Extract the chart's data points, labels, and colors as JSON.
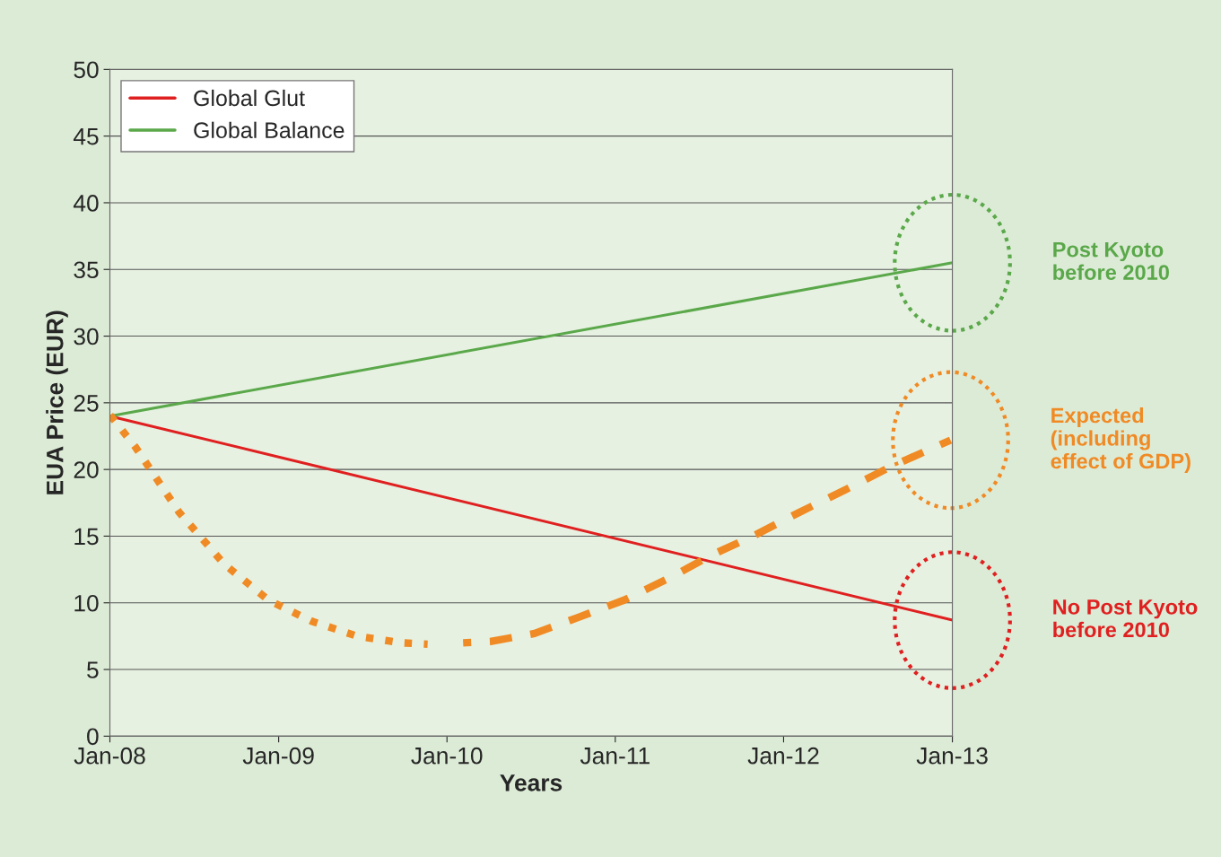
{
  "chart_data": {
    "type": "line",
    "xlabel": "Years",
    "ylabel": "EUA Price (EUR)",
    "xlim": [
      "2008-01-01",
      "2013-01-01"
    ],
    "xticks": [
      {
        "value": "2008-01-01",
        "label": "Jan-08"
      },
      {
        "value": "2009-01-01",
        "label": "Jan-09"
      },
      {
        "value": "2010-01-01",
        "label": "Jan-10"
      },
      {
        "value": "2011-01-01",
        "label": "Jan-11"
      },
      {
        "value": "2012-01-01",
        "label": "Jan-12"
      },
      {
        "value": "2013-01-01",
        "label": "Jan-13"
      }
    ],
    "ylim": [
      0,
      50
    ],
    "yticks": [
      0,
      5,
      10,
      15,
      20,
      25,
      30,
      35,
      40,
      45,
      50
    ],
    "grid": "y",
    "legend": "top left",
    "series": [
      {
        "name": "Global Glut",
        "color": "#e02020",
        "x": [
          "2008-01-01",
          "2013-01-01"
        ],
        "values": [
          24,
          8.7
        ]
      },
      {
        "name": "Global Balance",
        "color": "#5aa84a",
        "x": [
          "2008-01-01",
          "2013-01-01"
        ],
        "values": [
          24,
          35.5
        ]
      },
      {
        "color": "#f08a24",
        "line_style": "dotted",
        "x": [
          "2008-01-01",
          "2008-02-25",
          "2008-05-30",
          "2008-09-05",
          "2008-12-10",
          "2009-03-15",
          "2009-06-20",
          "2009-09-25",
          "2009-11-20"
        ],
        "values": [
          24.1,
          21.7,
          16.8,
          12.9,
          10.2,
          8.6,
          7.5,
          7.0,
          6.9
        ]
      },
      {
        "color": "#f08a24",
        "line_style": "dashed",
        "x": [
          "2010-02-05",
          "2010-04-05",
          "2010-07-10",
          "2010-10-12",
          "2011-01-20",
          "2011-04-25",
          "2011-07-30",
          "2011-11-01",
          "2012-02-05",
          "2012-05-15",
          "2012-08-20",
          "2012-12-28"
        ],
        "values": [
          7.0,
          7.1,
          7.7,
          8.9,
          10.2,
          11.8,
          13.6,
          15.1,
          16.8,
          18.5,
          20.2,
          22.2
        ]
      }
    ],
    "annotations": [
      "Post Kyoto\nbefore 2010",
      "Expected\n(including\neffect of GDP)",
      "No Post Kyoto\nbefore 2010"
    ]
  }
}
